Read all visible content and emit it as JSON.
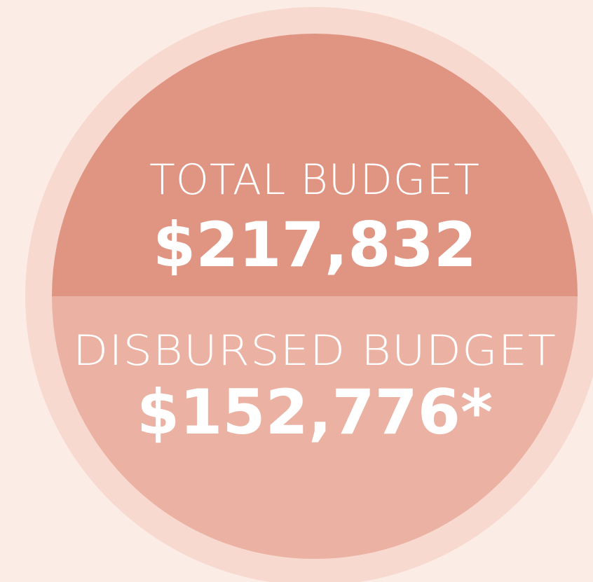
{
  "top": {
    "label": "TOTAL BUDGET",
    "amount": "$217,832"
  },
  "bottom": {
    "label": "DISBURSED BUDGET",
    "amount": "$152,776*"
  }
}
